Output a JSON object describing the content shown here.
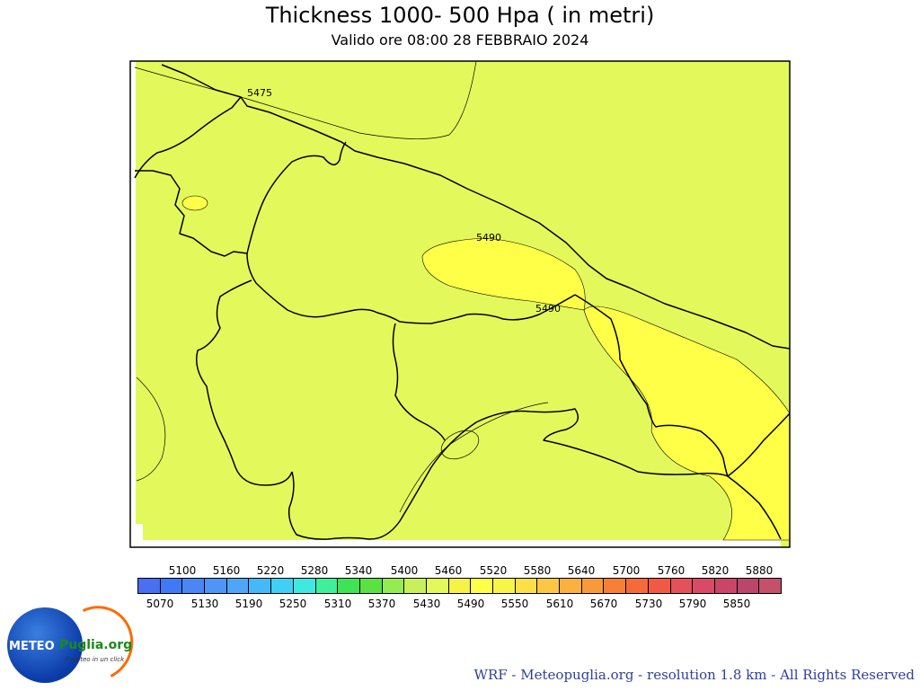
{
  "header": {
    "title": "Thickness 1000- 500 Hpa ( in metri)",
    "subtitle": "Valido ore  08:00 28 FEBBRAIO 2024"
  },
  "map": {
    "contours": [
      {
        "label": "5475"
      },
      {
        "label": "5490"
      },
      {
        "label": "5490"
      }
    ]
  },
  "legend": {
    "top_labels": [
      "5100",
      "5160",
      "5220",
      "5280",
      "5340",
      "5400",
      "5460",
      "5520",
      "5580",
      "5640",
      "5700",
      "5760",
      "5820",
      "5880"
    ],
    "bottom_labels": [
      "5070",
      "5130",
      "5190",
      "5250",
      "5310",
      "5370",
      "5430",
      "5490",
      "5550",
      "5610",
      "5670",
      "5730",
      "5790",
      "5850"
    ],
    "colors": [
      "#4a6ff0",
      "#3f79f5",
      "#4b86f5",
      "#4e95f5",
      "#4ea6f7",
      "#45b9f7",
      "#3fd0f7",
      "#3fe8e0",
      "#3ff09a",
      "#3fe356",
      "#5be242",
      "#95ec50",
      "#c8f05a",
      "#e3f95b",
      "#f7f247",
      "#ffff47",
      "#f7f547",
      "#fde047",
      "#fcc843",
      "#fbb03f",
      "#f99a3a",
      "#f78036",
      "#f56a3a",
      "#f05a44",
      "#e5515a",
      "#d84a66",
      "#c94668",
      "#ba466b",
      "#c4506b"
    ]
  },
  "logo": {
    "meteo": "METEO",
    "puglia": "Puglia.org",
    "sub": "il meteo in un click"
  },
  "footer": {
    "credit": "WRF - Meteopuglia.org - resolution 1.8 km - All Rights Reserved"
  }
}
